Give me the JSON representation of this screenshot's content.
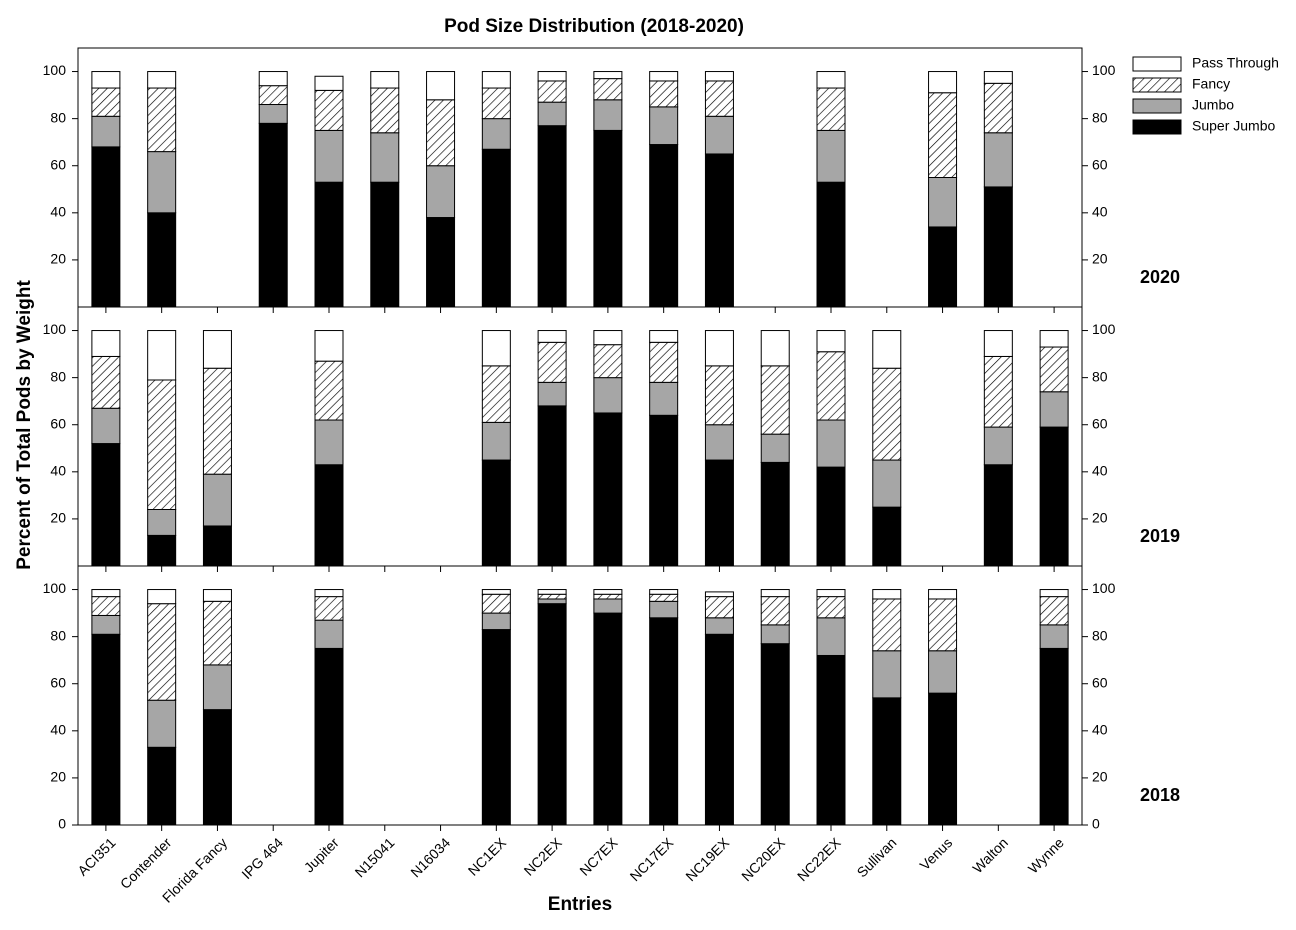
{
  "chart_data": {
    "type": "bar",
    "stacked": true,
    "title": "Pod Size Distribution (2018-2020)",
    "xlabel": "Entries",
    "ylabel": "Percent of Total Pods by Weight",
    "categories": [
      "ACI351",
      "Contender",
      "Florida Fancy",
      "IPG 464",
      "Jupiter",
      "N15041",
      "N16034",
      "NC1EX",
      "NC2EX",
      "NC7EX",
      "NC17EX",
      "NC19EX",
      "NC20EX",
      "NC22EX",
      "Sullivan",
      "Venus",
      "Walton",
      "Wynne"
    ],
    "series": [
      {
        "name": "Super Jumbo",
        "color": "#000000"
      },
      {
        "name": "Jumbo",
        "color": "#a6a6a6"
      },
      {
        "name": "Fancy",
        "color": "#ffffff",
        "hatch": true
      },
      {
        "name": "Pass Through",
        "color": "#ffffff"
      }
    ],
    "ylim": [
      0,
      110
    ],
    "panels": [
      {
        "label": "2020",
        "yticks": [
          20,
          40,
          60,
          80,
          100
        ],
        "values": [
          [
            68,
            40,
            null,
            78,
            53,
            53,
            38,
            67,
            77,
            75,
            69,
            65,
            null,
            53,
            null,
            34,
            51,
            null
          ],
          [
            13,
            26,
            null,
            8,
            22,
            21,
            22,
            13,
            10,
            13,
            16,
            16,
            null,
            22,
            null,
            21,
            23,
            null
          ],
          [
            12,
            27,
            null,
            8,
            17,
            19,
            28,
            13,
            9,
            9,
            11,
            15,
            null,
            18,
            null,
            36,
            21,
            null
          ],
          [
            7,
            7,
            null,
            6,
            6,
            7,
            12,
            7,
            4,
            3,
            4,
            4,
            null,
            7,
            null,
            9,
            5,
            null
          ]
        ]
      },
      {
        "label": "2019",
        "yticks": [
          20,
          40,
          60,
          80,
          100
        ],
        "values": [
          [
            52,
            13,
            17,
            null,
            43,
            null,
            null,
            45,
            68,
            65,
            64,
            45,
            44,
            42,
            25,
            null,
            43,
            59
          ],
          [
            15,
            11,
            22,
            null,
            19,
            null,
            null,
            16,
            10,
            15,
            14,
            15,
            12,
            20,
            20,
            null,
            16,
            15
          ],
          [
            22,
            55,
            45,
            null,
            25,
            null,
            null,
            24,
            17,
            14,
            17,
            25,
            29,
            29,
            39,
            null,
            30,
            19
          ],
          [
            11,
            21,
            16,
            null,
            13,
            null,
            null,
            15,
            5,
            6,
            5,
            15,
            15,
            9,
            16,
            null,
            11,
            7
          ]
        ]
      },
      {
        "label": "2018",
        "yticks": [
          0,
          20,
          40,
          60,
          80,
          100
        ],
        "values": [
          [
            81,
            33,
            49,
            null,
            75,
            null,
            null,
            83,
            94,
            90,
            88,
            81,
            77,
            72,
            54,
            56,
            null,
            75
          ],
          [
            8,
            20,
            19,
            null,
            12,
            null,
            null,
            7,
            2,
            6,
            7,
            7,
            8,
            16,
            20,
            18,
            null,
            10
          ],
          [
            8,
            41,
            27,
            null,
            10,
            null,
            null,
            8,
            2,
            2,
            3,
            9,
            12,
            9,
            22,
            22,
            null,
            12
          ],
          [
            3,
            6,
            5,
            null,
            3,
            null,
            null,
            2,
            2,
            2,
            2,
            2,
            3,
            3,
            4,
            4,
            null,
            3
          ]
        ]
      }
    ]
  }
}
